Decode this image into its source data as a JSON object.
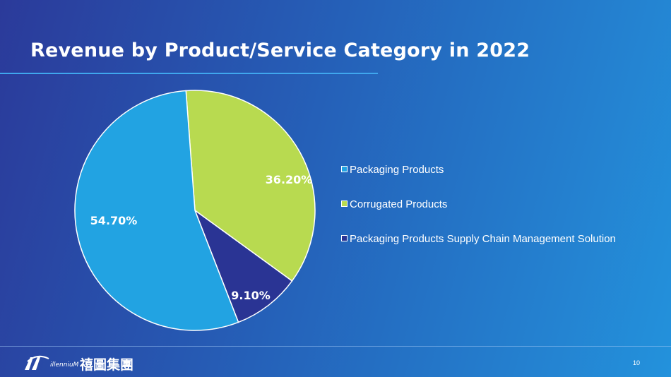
{
  "slide": {
    "title": "Revenue by Product/Service Category in 2022",
    "page_number": "10"
  },
  "logo": {
    "wordmark": "illenniuM",
    "chinese_name": "禧圖集團"
  },
  "colors": {
    "packaging": "#22a3e2",
    "corrugated": "#b8da50",
    "supply_chain": "#2a3494"
  },
  "chart_data": {
    "type": "pie",
    "title": "",
    "legend_position": "right",
    "slices": [
      {
        "name": "Packaging Products",
        "value": 54.7,
        "label": "54.70%",
        "color": "#22a3e2"
      },
      {
        "name": "Corrugated Products",
        "value": 36.2,
        "label": "36.20%",
        "color": "#b8da50"
      },
      {
        "name": "Packaging Products Supply Chain Management Solution",
        "value": 9.1,
        "label": "9.10%",
        "color": "#2a3494"
      }
    ]
  }
}
